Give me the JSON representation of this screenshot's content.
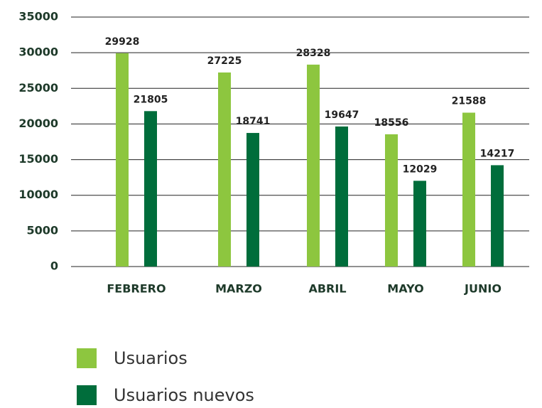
{
  "chart_data": {
    "type": "bar",
    "categories": [
      "FEBRERO",
      "MARZO",
      "ABRIL",
      "MAYO",
      "JUNIO"
    ],
    "series": [
      {
        "name": "Usuarios",
        "color": "#8dc63f",
        "values": [
          29928,
          27225,
          28328,
          18556,
          21588
        ]
      },
      {
        "name": "Usuarios nuevos",
        "color": "#006d3b",
        "values": [
          21805,
          18741,
          19647,
          12029,
          14217
        ]
      }
    ],
    "ylim": [
      0,
      35000
    ],
    "yticks": [
      0,
      5000,
      10000,
      15000,
      20000,
      25000,
      30000,
      35000
    ],
    "grid": true,
    "legend": "bottom"
  }
}
